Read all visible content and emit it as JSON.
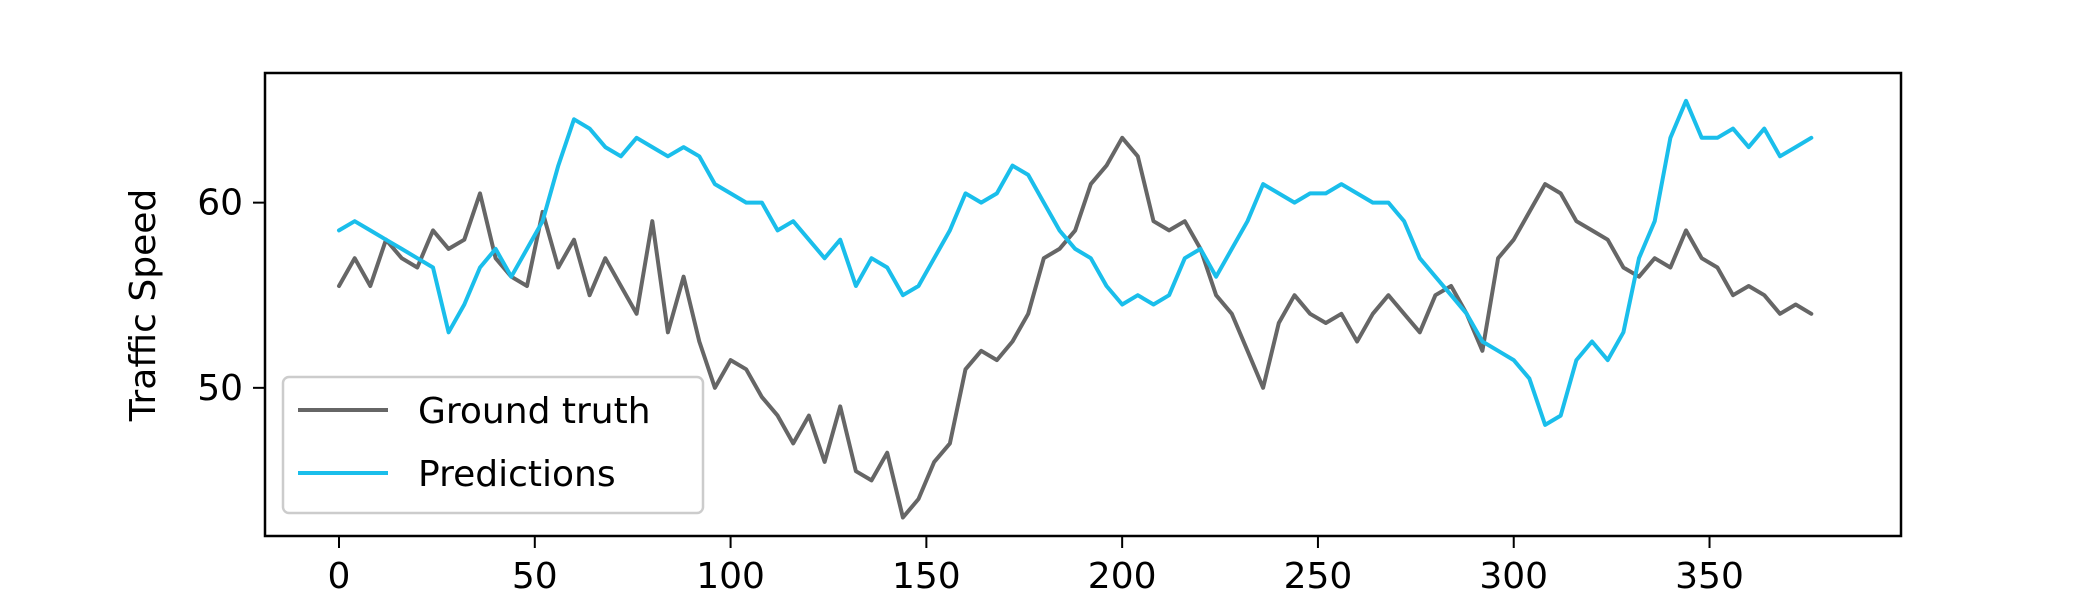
{
  "chart_data": {
    "type": "line",
    "title": "",
    "xlabel": "",
    "ylabel": "Traffic Speed",
    "xlim": [
      -18.9,
      398.9
    ],
    "ylim": [
      42.0,
      67.0
    ],
    "xticks": [
      0,
      50,
      100,
      150,
      200,
      250,
      300,
      350
    ],
    "yticks": [
      50,
      60
    ],
    "grid": false,
    "legend_position": "lower-left",
    "series": [
      {
        "name": "Ground truth",
        "color": "#666666",
        "x_start": 0,
        "x_step": 4,
        "values": [
          55.5,
          57.0,
          55.5,
          58.0,
          57.0,
          56.5,
          58.5,
          57.5,
          58.0,
          60.5,
          57.0,
          56.0,
          55.5,
          59.5,
          56.5,
          58.0,
          55.0,
          57.0,
          55.5,
          54.0,
          59.0,
          53.0,
          56.0,
          52.5,
          50.0,
          51.5,
          51.0,
          49.5,
          48.5,
          47.0,
          48.5,
          46.0,
          49.0,
          45.5,
          45.0,
          46.5,
          43.0,
          44.0,
          46.0,
          47.0,
          51.0,
          52.0,
          51.5,
          52.5,
          54.0,
          57.0,
          57.5,
          58.5,
          61.0,
          62.0,
          63.5,
          62.5,
          59.0,
          58.5,
          59.0,
          57.5,
          55.0,
          54.0,
          52.0,
          50.0,
          53.5,
          55.0,
          54.0,
          53.5,
          54.0,
          52.5,
          54.0,
          55.0,
          54.0,
          53.0,
          55.0,
          55.5,
          54.0,
          52.0,
          57.0,
          58.0,
          59.5,
          61.0,
          60.5,
          59.0,
          58.5,
          58.0,
          56.5,
          56.0,
          57.0,
          56.5,
          58.5,
          57.0,
          56.5,
          55.0,
          55.5,
          55.0,
          54.0,
          54.5,
          54.0
        ]
      },
      {
        "name": "Predictions",
        "color": "#1ABEEB",
        "x_start": 0,
        "x_step": 4,
        "values": [
          58.5,
          59.0,
          58.5,
          58.0,
          57.5,
          57.0,
          56.5,
          53.0,
          54.5,
          56.5,
          57.5,
          56.0,
          57.5,
          59.0,
          62.0,
          64.5,
          64.0,
          63.0,
          62.5,
          63.5,
          63.0,
          62.5,
          63.0,
          62.5,
          61.0,
          60.5,
          60.0,
          60.0,
          58.5,
          59.0,
          58.0,
          57.0,
          58.0,
          55.5,
          57.0,
          56.5,
          55.0,
          55.5,
          57.0,
          58.5,
          60.5,
          60.0,
          60.5,
          62.0,
          61.5,
          60.0,
          58.5,
          57.5,
          57.0,
          55.5,
          54.5,
          55.0,
          54.5,
          55.0,
          57.0,
          57.5,
          56.0,
          57.5,
          59.0,
          61.0,
          60.5,
          60.0,
          60.5,
          60.5,
          61.0,
          60.5,
          60.0,
          60.0,
          59.0,
          57.0,
          56.0,
          55.0,
          54.0,
          52.5,
          52.0,
          51.5,
          50.5,
          48.0,
          48.5,
          51.5,
          52.5,
          51.5,
          53.0,
          57.0,
          59.0,
          63.5,
          65.5,
          63.5,
          63.5,
          64.0,
          63.0,
          64.0,
          62.5,
          63.0,
          63.5
        ]
      }
    ]
  }
}
